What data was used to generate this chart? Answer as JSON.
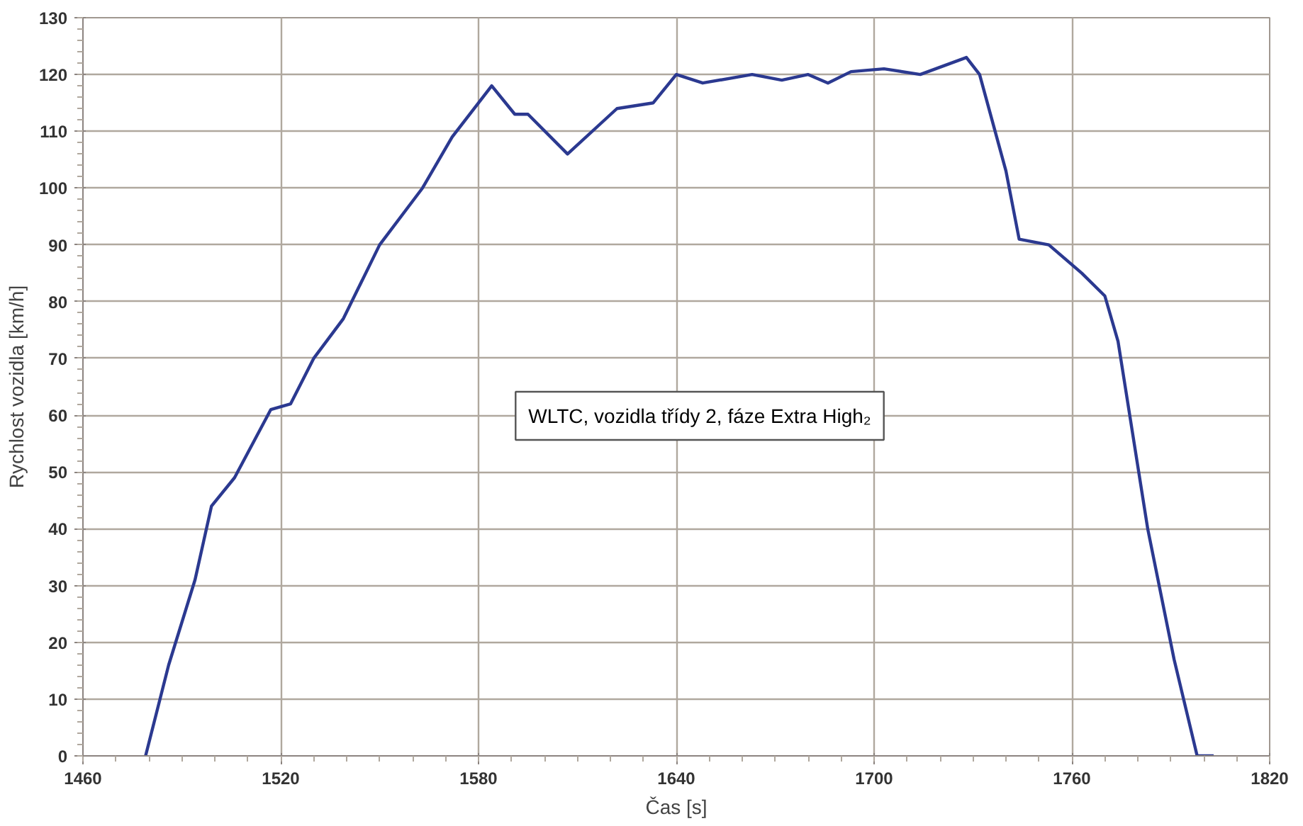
{
  "chart_data": {
    "type": "line",
    "xlabel": "Čas [s]",
    "ylabel": "Rychlost vozidla [km/h]",
    "annotations": [
      "WLTC, vozidla třídy 2, fáze Extra High₂"
    ],
    "xlim": [
      1460,
      1820
    ],
    "ylim": [
      0,
      130
    ],
    "xticks": [
      1460,
      1520,
      1580,
      1640,
      1700,
      1760,
      1820
    ],
    "yticks": [
      0,
      10,
      20,
      30,
      40,
      50,
      60,
      70,
      80,
      90,
      100,
      110,
      120,
      130
    ],
    "grid": true,
    "marker": "none",
    "line_style": "solid",
    "series": [
      {
        "color": "#2b3990",
        "x": [
          1479,
          1486,
          1494,
          1499,
          1506,
          1517,
          1523,
          1530,
          1539,
          1550,
          1563,
          1572,
          1584,
          1591,
          1595,
          1607,
          1622,
          1633,
          1640,
          1648,
          1663,
          1672,
          1680,
          1686,
          1693,
          1703,
          1714,
          1728,
          1732,
          1740,
          1744,
          1753,
          1763,
          1770,
          1774,
          1783,
          1791,
          1798,
          1803
        ],
        "values": [
          0,
          16,
          31,
          44,
          49,
          61,
          62,
          70,
          77,
          90,
          100,
          109,
          118,
          113,
          113,
          106,
          114,
          115,
          120,
          118.5,
          120,
          119,
          120,
          118.5,
          120.5,
          121,
          120,
          123,
          120,
          103,
          91,
          90,
          85,
          81,
          73,
          40,
          17,
          0,
          0
        ]
      }
    ]
  }
}
